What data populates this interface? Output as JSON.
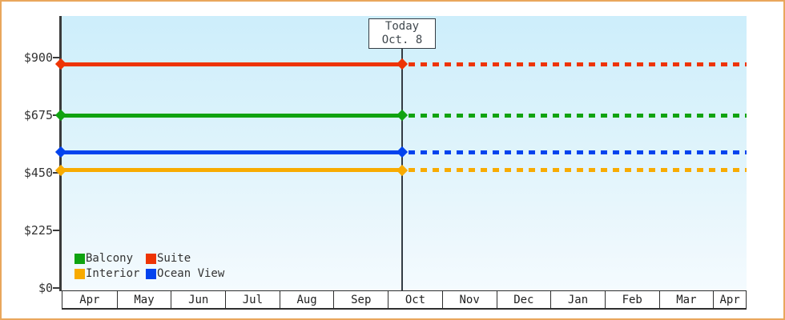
{
  "page": {
    "background": "#ffffff",
    "border_color": "#e9a75c"
  },
  "chart_data": {
    "type": "line",
    "title": "",
    "x_categories": [
      "Apr",
      "May",
      "Jun",
      "Jul",
      "Aug",
      "Sep",
      "Oct",
      "Nov",
      "Dec",
      "Jan",
      "Feb",
      "Mar",
      "Apr"
    ],
    "y_axis": {
      "tick_labels": [
        "$900",
        "$675",
        "$450",
        "$225",
        "$0"
      ],
      "tick_values": [
        900,
        675,
        450,
        225,
        0
      ],
      "ylim": [
        0,
        1070
      ],
      "unit": "$"
    },
    "series": [
      {
        "name": "Balcony",
        "color": "#10a310",
        "value": 675
      },
      {
        "name": "Suite",
        "color": "#ee3404",
        "value": 875
      },
      {
        "name": "Interior",
        "color": "#f8ab00",
        "value": 460
      },
      {
        "name": "Ocean View",
        "color": "#0343ee",
        "value": 530
      }
    ],
    "line_style": {
      "before_today": "solid",
      "after_today": "dotted",
      "marker": "diamond"
    },
    "today": {
      "line1": "Today",
      "line2": "Oct. 8",
      "month_index": 6,
      "month_fraction": 0.28
    },
    "legend": {
      "position": "bottom-left",
      "columns": 2,
      "order": [
        "Balcony",
        "Suite",
        "Interior",
        "Ocean View"
      ]
    },
    "grid": false,
    "plot_background_top": "#cdeefb",
    "plot_background_bottom": "#f4fbfe",
    "axis_color": "#3a3a3a"
  }
}
